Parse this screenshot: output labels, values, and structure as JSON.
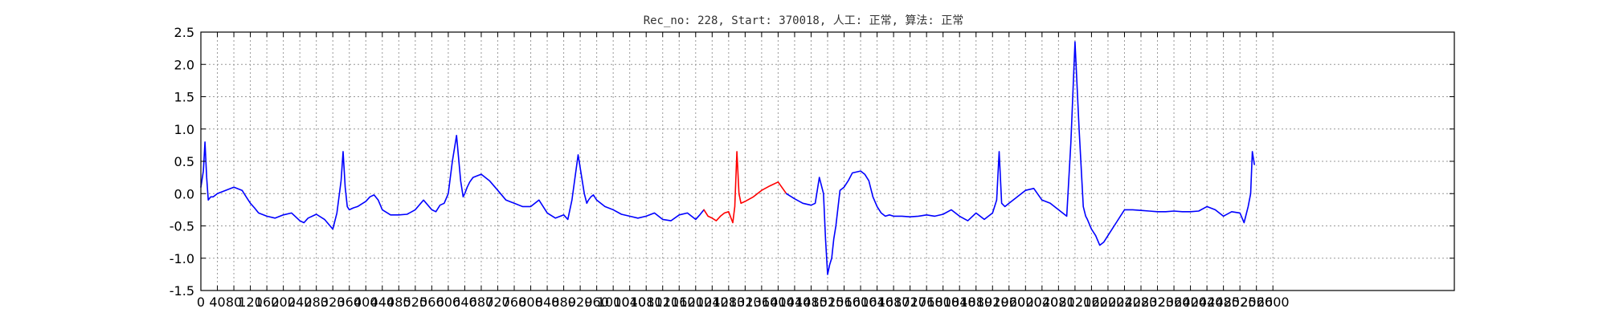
{
  "chart_data": {
    "type": "line",
    "title": "Rec_no: 228, Start: 370018, 人工: 正常, 算法: 正常",
    "xlabel": "",
    "ylabel": "",
    "xlim": [
      0,
      3040
    ],
    "ylim": [
      -1.5,
      2.5
    ],
    "grid": true,
    "xticks": [
      0,
      40,
      80,
      120,
      160,
      200,
      240,
      280,
      320,
      360,
      400,
      440,
      480,
      520,
      560,
      600,
      640,
      680,
      720,
      760,
      800,
      840,
      880,
      920,
      960,
      1000,
      1040,
      1080,
      1120,
      1160,
      1200,
      1240,
      1280,
      1320,
      1360,
      1400,
      1440,
      1480,
      1520,
      1560,
      1600,
      1640,
      1680,
      1720,
      1760,
      1800,
      1840,
      1880,
      1920,
      1960,
      2000,
      2040,
      2080,
      2120,
      2160,
      2200,
      2240,
      2280,
      2320,
      2360,
      2400,
      2440,
      2480,
      2520,
      2560,
      2600
    ],
    "xtick_labels": [
      "0",
      "40",
      "80",
      "120",
      "160",
      "200",
      "240",
      "280",
      "320",
      "360",
      "400",
      "440",
      "480",
      "520",
      "560",
      "600",
      "640",
      "680",
      "720",
      "760",
      "800",
      "840",
      "880",
      "920",
      "960",
      "1000",
      "1040",
      "1080",
      "1120",
      "1160",
      "1200",
      "1240",
      "1280",
      "1320",
      "1360",
      "1400",
      "1440",
      "1480",
      "1520",
      "1560",
      "1600",
      "1640",
      "1680",
      "1720",
      "1760",
      "1800",
      "1840",
      "1880",
      "1920",
      "1960",
      "2000",
      "2040",
      "2080",
      "2120",
      "2160",
      "2200",
      "2240",
      "2280",
      "2320",
      "2360",
      "2400",
      "2440",
      "2480",
      "2520",
      "2560",
      "2600"
    ],
    "yticks": [
      -1.5,
      -1.0,
      -0.5,
      0.0,
      0.5,
      1.0,
      1.5,
      2.0,
      2.5
    ],
    "ytick_labels": [
      "-1.5",
      "-1.0",
      "-0.5",
      "0.0",
      "0.5",
      "1.0",
      "1.5",
      "2.0",
      "2.5"
    ],
    "series": [
      {
        "color": "#0000ff",
        "x": [
          0,
          6,
          10,
          14,
          18,
          24,
          30,
          40,
          60,
          80,
          100,
          110,
          120,
          130,
          140,
          160,
          180,
          200,
          220,
          240,
          250,
          260,
          280,
          300,
          320,
          330,
          340,
          345,
          350,
          355,
          360,
          370,
          380,
          400,
          410,
          420,
          430,
          440,
          460,
          480,
          500,
          520,
          540,
          560,
          570,
          580,
          590,
          600,
          610,
          620,
          630,
          636,
          640,
          646,
          652,
          660,
          680,
          700,
          720,
          740,
          760,
          780,
          800,
          820,
          840,
          860,
          880,
          890,
          900,
          915,
          930,
          936,
          940,
          946,
          952,
          960,
          980,
          1000,
          1020,
          1040,
          1060,
          1080,
          1100,
          1120,
          1140,
          1160,
          1180,
          1200,
          1210,
          1220
        ],
        "values": [
          0.1,
          0.35,
          0.8,
          0.25,
          -0.1,
          -0.05,
          -0.05,
          0.0,
          0.05,
          0.1,
          0.05,
          -0.05,
          -0.15,
          -0.22,
          -0.3,
          -0.35,
          -0.38,
          -0.33,
          -0.3,
          -0.42,
          -0.45,
          -0.38,
          -0.32,
          -0.4,
          -0.55,
          -0.3,
          0.2,
          0.65,
          0.1,
          -0.2,
          -0.25,
          -0.22,
          -0.2,
          -0.12,
          -0.05,
          -0.02,
          -0.1,
          -0.25,
          -0.33,
          -0.33,
          -0.32,
          -0.25,
          -0.1,
          -0.25,
          -0.28,
          -0.18,
          -0.15,
          0.0,
          0.5,
          0.9,
          0.2,
          -0.05,
          0.0,
          0.1,
          0.18,
          0.25,
          0.3,
          0.2,
          0.05,
          -0.1,
          -0.15,
          -0.2,
          -0.2,
          -0.1,
          -0.3,
          -0.38,
          -0.33,
          -0.4,
          -0.1,
          0.6,
          0.0,
          -0.15,
          -0.1,
          -0.05,
          -0.02,
          -0.1,
          -0.2,
          -0.25,
          -0.32,
          -0.35,
          -0.38,
          -0.35,
          -0.3,
          -0.4,
          -0.42,
          -0.33,
          -0.3,
          -0.4,
          -0.33,
          -0.25
        ]
      },
      {
        "color": "#ff0000",
        "x": [
          1220,
          1230,
          1240,
          1250,
          1260,
          1270,
          1280,
          1290,
          1295,
          1300,
          1305,
          1310,
          1320,
          1340,
          1360,
          1380,
          1400,
          1420
        ],
        "values": [
          -0.25,
          -0.35,
          -0.38,
          -0.42,
          -0.35,
          -0.3,
          -0.28,
          -0.45,
          -0.2,
          0.65,
          0.0,
          -0.15,
          -0.12,
          -0.05,
          0.05,
          0.12,
          0.18,
          0.0
        ]
      },
      {
        "color": "#0000ff",
        "x": [
          1420,
          1440,
          1460,
          1480,
          1490,
          1500,
          1510,
          1515,
          1520,
          1525,
          1530,
          1535,
          1540,
          1550,
          1560,
          1570,
          1580,
          1600,
          1610,
          1620,
          1630,
          1640,
          1650,
          1660,
          1670,
          1680,
          1700,
          1720,
          1740,
          1760,
          1780,
          1800,
          1820,
          1840,
          1860,
          1880,
          1900,
          1920,
          1930,
          1936,
          1942,
          1950,
          1960,
          1980,
          2000,
          2020,
          2040,
          2060,
          2080,
          2100,
          2110,
          2120,
          2130,
          2140,
          2146,
          2150,
          2160,
          2170,
          2180,
          2190,
          2200,
          2220,
          2240,
          2260,
          2280,
          2300,
          2320,
          2340,
          2360,
          2380,
          2400,
          2420,
          2440,
          2460,
          2480,
          2500,
          2520,
          2530,
          2540,
          2546,
          2550,
          2555
        ],
        "values": [
          0.0,
          -0.08,
          -0.15,
          -0.18,
          -0.15,
          0.25,
          0.0,
          -0.7,
          -1.25,
          -1.1,
          -1.0,
          -0.7,
          -0.5,
          0.05,
          0.1,
          0.2,
          0.32,
          0.35,
          0.3,
          0.2,
          -0.05,
          -0.2,
          -0.3,
          -0.35,
          -0.33,
          -0.35,
          -0.35,
          -0.36,
          -0.35,
          -0.33,
          -0.35,
          -0.32,
          -0.25,
          -0.35,
          -0.42,
          -0.3,
          -0.4,
          -0.3,
          -0.1,
          0.65,
          -0.15,
          -0.2,
          -0.15,
          -0.05,
          0.05,
          0.08,
          -0.1,
          -0.15,
          -0.25,
          -0.35,
          0.8,
          2.35,
          1.0,
          -0.2,
          -0.35,
          -0.4,
          -0.55,
          -0.65,
          -0.8,
          -0.75,
          -0.65,
          -0.45,
          -0.25,
          -0.25,
          -0.26,
          -0.27,
          -0.28,
          -0.28,
          -0.27,
          -0.28,
          -0.28,
          -0.27,
          -0.2,
          -0.25,
          -0.35,
          -0.28,
          -0.3,
          -0.45,
          -0.2,
          0.0,
          0.65,
          0.45
        ]
      }
    ]
  }
}
